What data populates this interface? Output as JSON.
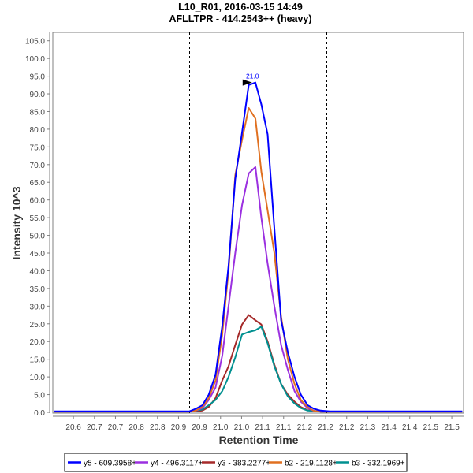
{
  "chart_data": {
    "type": "line",
    "title": "L10_R01, 2016-03-15 14:49",
    "subtitle": "AFLLTPR - 414.2543++ (heavy)",
    "xlabel": "Retention Time",
    "ylabel": "Intensity 10^3",
    "xlim": [
      20.551,
      21.528
    ],
    "ylim": [
      0,
      105
    ],
    "grid": false,
    "legend_position": "bottom",
    "x_ticks": [
      20.6,
      20.65,
      20.7,
      20.75,
      20.8,
      20.85,
      20.9,
      20.95,
      21.0,
      21.05,
      21.1,
      21.15,
      21.2,
      21.25,
      21.3,
      21.35,
      21.4,
      21.45,
      21.5
    ],
    "x_tick_labels": [
      "20.6",
      "20.7",
      "20.7",
      "20.8",
      "20.8",
      "20.9",
      "20.9",
      "21.0",
      "21.0",
      "21.1",
      "21.1",
      "21.2",
      "21.2",
      "21.2",
      "21.3",
      "21.4",
      "21.4",
      "21.5",
      "21.5"
    ],
    "y_ticks": [
      0,
      5,
      10,
      15,
      20,
      25,
      30,
      35,
      40,
      45,
      50,
      55,
      60,
      65,
      70,
      75,
      80,
      85,
      90,
      95,
      100,
      105
    ],
    "y_tick_labels": [
      "0.0",
      "5.0",
      "10.0",
      "15.0",
      "20.0",
      "25.0",
      "30.0",
      "35.0",
      "40.0",
      "45.0",
      "50.0",
      "55.0",
      "60.0",
      "65.0",
      "70.0",
      "75.0",
      "80.0",
      "85.0",
      "90.0",
      "95.0",
      "100.0",
      "105.0"
    ],
    "integration_boundaries": [
      20.876,
      21.202
    ],
    "peak_annotation": {
      "label": "21.0",
      "x": 21.025,
      "y": 93.2
    },
    "x": [
      20.555,
      20.86,
      20.876,
      20.891,
      20.907,
      20.922,
      20.938,
      20.954,
      20.969,
      20.985,
      21.001,
      21.017,
      21.033,
      21.047,
      21.062,
      21.078,
      21.094,
      21.11,
      21.126,
      21.141,
      21.157,
      21.172,
      21.188,
      21.21,
      21.525
    ],
    "series": [
      {
        "name": "y5 - 609.3958+",
        "color": "#0000ff",
        "values": [
          0.3,
          0.3,
          0.3,
          1.0,
          2.0,
          5.0,
          10.6,
          24.4,
          41.4,
          65.9,
          79.0,
          92.5,
          93.2,
          87.0,
          78.5,
          52.0,
          26.0,
          17.0,
          10.0,
          5.0,
          2.0,
          1.0,
          0.5,
          0.3,
          0.3
        ]
      },
      {
        "name": "y4 - 496.3117+",
        "color": "#9b30e0",
        "values": [
          0.2,
          0.2,
          0.2,
          0.5,
          1.2,
          3.5,
          7.0,
          16.0,
          30.0,
          45.0,
          58.5,
          67.5,
          69.3,
          55.0,
          42.0,
          30.0,
          19.0,
          12.0,
          6.0,
          3.0,
          1.2,
          0.4,
          0.2,
          0.2,
          0.2
        ]
      },
      {
        "name": "y3 - 383.2277+",
        "color": "#a52a2a",
        "values": [
          0.2,
          0.2,
          0.2,
          0.3,
          0.5,
          1.5,
          4.0,
          9.0,
          13.0,
          19.0,
          24.8,
          27.5,
          26.0,
          24.8,
          20.0,
          13.5,
          8.0,
          5.0,
          3.0,
          1.5,
          0.6,
          0.4,
          0.2,
          0.2,
          0.2
        ]
      },
      {
        "name": "b2 - 219.1128+",
        "color": "#e07020",
        "values": [
          0.2,
          0.2,
          0.2,
          0.5,
          1.5,
          4.0,
          9.0,
          22.0,
          40.0,
          67.0,
          77.0,
          86.0,
          83.0,
          68.0,
          57.0,
          45.0,
          27.0,
          15.0,
          8.0,
          3.5,
          1.5,
          0.4,
          0.2,
          0.2,
          0.2
        ]
      },
      {
        "name": "b3 - 332.1969+",
        "color": "#009090",
        "values": [
          0.2,
          0.2,
          0.2,
          0.5,
          0.8,
          2.0,
          3.5,
          6.0,
          10.0,
          15.5,
          22.0,
          22.7,
          23.2,
          24.2,
          19.5,
          13.0,
          8.0,
          4.5,
          2.5,
          1.2,
          0.5,
          0.4,
          0.2,
          0.2,
          0.2
        ]
      }
    ]
  }
}
